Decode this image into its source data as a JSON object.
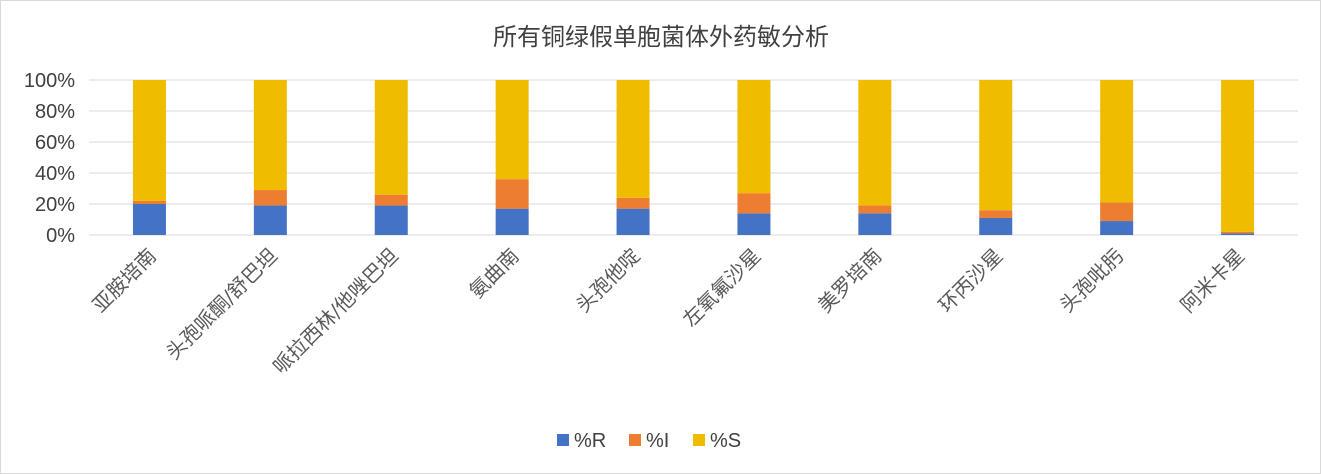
{
  "chart_data": {
    "type": "bar",
    "stacked": true,
    "percent_stacked": true,
    "title": "所有铜绿假单胞菌体外药敏分析",
    "xlabel": "",
    "ylabel": "",
    "categories": [
      "亚胺培南",
      "头孢哌酮/舒巴坦",
      "哌拉西林/他唑巴坦",
      "氨曲南",
      "头孢他啶",
      "左氧氟沙星",
      "美罗培南",
      "环丙沙星",
      "头孢吡肟",
      "阿米卡星"
    ],
    "series": [
      {
        "name": "%R",
        "color": "#4472C4",
        "values": [
          20,
          19,
          19,
          17,
          17,
          14,
          14,
          11,
          9,
          1
        ]
      },
      {
        "name": "%I",
        "color": "#ED7D31",
        "values": [
          2,
          10,
          7,
          19,
          7,
          13,
          5,
          5,
          12,
          1
        ]
      },
      {
        "name": "%S",
        "color": "#F0BC00",
        "values": [
          78,
          71,
          74,
          64,
          76,
          73,
          81,
          84,
          79,
          98
        ]
      }
    ],
    "ylim": [
      0,
      100
    ],
    "yticks": [
      "0%",
      "20%",
      "40%",
      "60%",
      "80%",
      "100%"
    ],
    "grid": true,
    "legend_position": "bottom"
  }
}
